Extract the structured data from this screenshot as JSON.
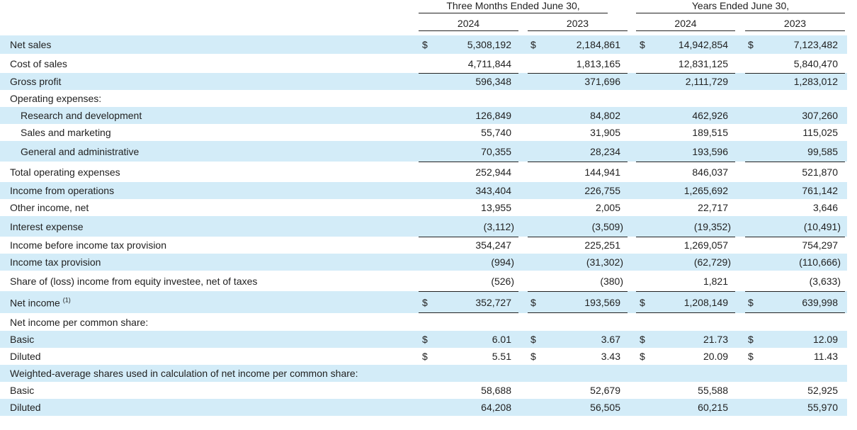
{
  "header": {
    "groups": [
      "Three Months Ended June 30,",
      "Years Ended June 30,"
    ],
    "years": [
      "2024",
      "2023",
      "2024",
      "2023"
    ]
  },
  "table": {
    "rows": [
      {
        "label": "Net sales",
        "cells": [
          {
            "sym": "$",
            "val": "5,308,192"
          },
          {
            "sym": "$",
            "val": "2,184,861"
          },
          {
            "sym": "$",
            "val": "14,942,854"
          },
          {
            "sym": "$",
            "val": "7,123,482"
          }
        ]
      },
      {
        "label": "Cost of sales",
        "cells": [
          {
            "val": "4,711,844"
          },
          {
            "val": "1,813,165"
          },
          {
            "val": "12,831,125"
          },
          {
            "val": "5,840,470"
          }
        ]
      },
      {
        "label": "Gross profit",
        "cells": [
          {
            "val": "596,348"
          },
          {
            "val": "371,696"
          },
          {
            "val": "2,111,729"
          },
          {
            "val": "1,283,012"
          }
        ]
      },
      {
        "label": "Operating expenses:"
      },
      {
        "label": "Research and development",
        "indent": true,
        "cells": [
          {
            "val": "126,849"
          },
          {
            "val": "84,802"
          },
          {
            "val": "462,926"
          },
          {
            "val": "307,260"
          }
        ]
      },
      {
        "label": "Sales and marketing",
        "indent": true,
        "cells": [
          {
            "val": "55,740"
          },
          {
            "val": "31,905"
          },
          {
            "val": "189,515"
          },
          {
            "val": "115,025"
          }
        ]
      },
      {
        "label": "General and administrative",
        "indent": true,
        "cells": [
          {
            "val": "70,355"
          },
          {
            "val": "28,234"
          },
          {
            "val": "193,596"
          },
          {
            "val": "99,585"
          }
        ]
      },
      {
        "label": "Total operating expenses",
        "cells": [
          {
            "val": "252,944"
          },
          {
            "val": "144,941"
          },
          {
            "val": "846,037"
          },
          {
            "val": "521,870"
          }
        ]
      },
      {
        "label": "Income from operations",
        "cells": [
          {
            "val": "343,404"
          },
          {
            "val": "226,755"
          },
          {
            "val": "1,265,692"
          },
          {
            "val": "761,142"
          }
        ]
      },
      {
        "label": "Other income, net",
        "cells": [
          {
            "val": "13,955"
          },
          {
            "val": "2,005"
          },
          {
            "val": "22,717"
          },
          {
            "val": "3,646"
          }
        ]
      },
      {
        "label": "Interest expense",
        "cells": [
          {
            "val": "(3,112)"
          },
          {
            "val": "(3,509)"
          },
          {
            "val": "(19,352)"
          },
          {
            "val": "(10,491)"
          }
        ]
      },
      {
        "label": "Income before income tax provision",
        "cells": [
          {
            "val": "354,247"
          },
          {
            "val": "225,251"
          },
          {
            "val": "1,269,057"
          },
          {
            "val": "754,297"
          }
        ]
      },
      {
        "label": "Income tax provision",
        "cells": [
          {
            "val": "(994)"
          },
          {
            "val": "(31,302)"
          },
          {
            "val": "(62,729)"
          },
          {
            "val": "(110,666)"
          }
        ]
      },
      {
        "label": "Share of (loss) income from equity investee, net of taxes",
        "cells": [
          {
            "val": "(526)"
          },
          {
            "val": "(380)"
          },
          {
            "val": "1,821"
          },
          {
            "val": "(3,633)"
          }
        ]
      },
      {
        "label": "Net income",
        "note": "(1)",
        "cells": [
          {
            "sym": "$",
            "val": "352,727"
          },
          {
            "sym": "$",
            "val": "193,569"
          },
          {
            "sym": "$",
            "val": "1,208,149"
          },
          {
            "sym": "$",
            "val": "639,998"
          }
        ]
      },
      {
        "label": "Net income per common share:"
      },
      {
        "label": "Basic",
        "cells": [
          {
            "sym": "$",
            "val": "6.01"
          },
          {
            "sym": "$",
            "val": "3.67"
          },
          {
            "sym": "$",
            "val": "21.73"
          },
          {
            "sym": "$",
            "val": "12.09"
          }
        ]
      },
      {
        "label": "Diluted",
        "cells": [
          {
            "sym": "$",
            "val": "5.51"
          },
          {
            "sym": "$",
            "val": "3.43"
          },
          {
            "sym": "$",
            "val": "20.09"
          },
          {
            "sym": "$",
            "val": "11.43"
          }
        ]
      },
      {
        "label": "Weighted-average shares used in calculation of net income per common share:"
      },
      {
        "label": "Basic",
        "cells": [
          {
            "val": "58,688"
          },
          {
            "val": "52,679"
          },
          {
            "val": "55,588"
          },
          {
            "val": "52,925"
          }
        ]
      },
      {
        "label": "Diluted",
        "cells": [
          {
            "val": "64,208"
          },
          {
            "val": "56,505"
          },
          {
            "val": "60,215"
          },
          {
            "val": "55,970"
          }
        ]
      }
    ]
  }
}
